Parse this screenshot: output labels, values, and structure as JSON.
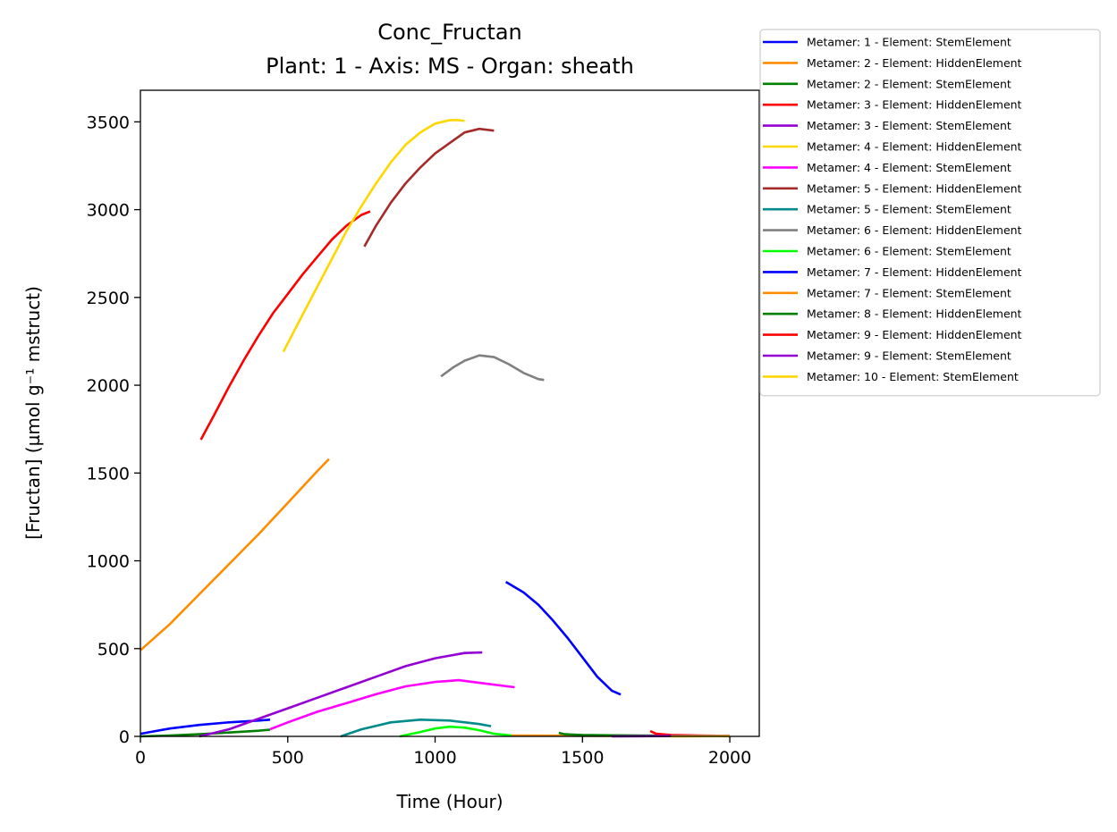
{
  "chart_data": {
    "type": "line",
    "title": "Conc_Fructan",
    "subtitle": "Plant: 1 - Axis: MS - Organ: sheath",
    "xlabel": "Time (Hour)",
    "ylabel": "[Fructan] (µmol g⁻¹ mstruct)",
    "xlim": [
      0,
      2100
    ],
    "ylim": [
      0,
      3680
    ],
    "xticks": [
      0,
      500,
      1000,
      1500,
      2000
    ],
    "yticks": [
      0,
      500,
      1000,
      1500,
      2000,
      2500,
      3000,
      3500
    ],
    "grid": false,
    "legend_position": "outside-top-right",
    "series": [
      {
        "name": "Metamer: 1 - Element: StemElement",
        "color": "#0000ff",
        "x": [
          0,
          50,
          100,
          200,
          300,
          400,
          440
        ],
        "y": [
          15,
          30,
          45,
          65,
          80,
          90,
          95
        ]
      },
      {
        "name": "Metamer: 2 - Element: HiddenElement",
        "color": "#ff8c00",
        "x": [
          0,
          100,
          200,
          300,
          400,
          500,
          600,
          640
        ],
        "y": [
          490,
          640,
          810,
          980,
          1150,
          1330,
          1510,
          1580
        ]
      },
      {
        "name": "Metamer: 2 - Element: StemElement",
        "color": "#008000",
        "x": [
          0,
          100,
          200,
          300,
          400,
          440
        ],
        "y": [
          0,
          5,
          12,
          22,
          32,
          38
        ]
      },
      {
        "name": "Metamer: 3 - Element: HiddenElement",
        "color": "#ff0000",
        "x": [
          205,
          250,
          300,
          350,
          400,
          450,
          500,
          550,
          600,
          650,
          700,
          750,
          780
        ],
        "y": [
          1690,
          1830,
          1990,
          2140,
          2280,
          2410,
          2520,
          2630,
          2730,
          2830,
          2910,
          2970,
          2990
        ]
      },
      {
        "name": "Metamer: 3 - Element: StemElement",
        "color": "#9400d3",
        "x": [
          200,
          300,
          400,
          500,
          600,
          700,
          800,
          900,
          1000,
          1100,
          1160
        ],
        "y": [
          0,
          40,
          100,
          160,
          220,
          280,
          340,
          400,
          445,
          475,
          478
        ]
      },
      {
        "name": "Metamer: 4 - Element: HiddenElement",
        "color": "#ffd700",
        "x": [
          485,
          550,
          600,
          650,
          700,
          750,
          800,
          850,
          900,
          950,
          1000,
          1050,
          1080,
          1100
        ],
        "y": [
          2190,
          2400,
          2560,
          2720,
          2880,
          3020,
          3150,
          3270,
          3370,
          3440,
          3490,
          3510,
          3510,
          3505
        ]
      },
      {
        "name": "Metamer: 4 - Element: StemElement",
        "color": "#ff00ff",
        "x": [
          440,
          500,
          600,
          700,
          800,
          900,
          1000,
          1080,
          1150,
          1270
        ],
        "y": [
          40,
          80,
          140,
          190,
          240,
          285,
          310,
          320,
          305,
          280
        ]
      },
      {
        "name": "Metamer: 5 - Element: HiddenElement",
        "color": "#a52a2a",
        "x": [
          760,
          800,
          850,
          900,
          950,
          1000,
          1050,
          1100,
          1150,
          1200
        ],
        "y": [
          2790,
          2910,
          3040,
          3150,
          3240,
          3320,
          3380,
          3440,
          3460,
          3450
        ]
      },
      {
        "name": "Metamer: 5 - Element: StemElement",
        "color": "#008b8b",
        "x": [
          680,
          750,
          850,
          950,
          1050,
          1150,
          1190
        ],
        "y": [
          0,
          40,
          80,
          95,
          90,
          70,
          58
        ]
      },
      {
        "name": "Metamer: 6 - Element: HiddenElement",
        "color": "#808080",
        "x": [
          1020,
          1060,
          1100,
          1150,
          1200,
          1250,
          1300,
          1350,
          1370
        ],
        "y": [
          2050,
          2100,
          2140,
          2170,
          2160,
          2120,
          2070,
          2035,
          2030
        ]
      },
      {
        "name": "Metamer: 6 - Element: StemElement",
        "color": "#00ff00",
        "x": [
          880,
          950,
          1000,
          1050,
          1100,
          1150,
          1200,
          1260
        ],
        "y": [
          0,
          25,
          45,
          55,
          50,
          35,
          15,
          5
        ]
      },
      {
        "name": "Metamer: 7 - Element: HiddenElement",
        "color": "#0000ff",
        "x": [
          1240,
          1300,
          1350,
          1400,
          1450,
          1500,
          1550,
          1600,
          1630
        ],
        "y": [
          880,
          820,
          750,
          660,
          560,
          450,
          340,
          260,
          238
        ]
      },
      {
        "name": "Metamer: 7 - Element: StemElement",
        "color": "#ff8c00",
        "x": [
          1260,
          1400,
          1600,
          1800,
          2000
        ],
        "y": [
          5,
          4,
          3,
          2,
          1
        ]
      },
      {
        "name": "Metamer: 8 - Element: HiddenElement",
        "color": "#008000",
        "x": [
          1420,
          1440,
          1500,
          1600,
          1700,
          1800,
          1900,
          2000
        ],
        "y": [
          20,
          12,
          8,
          6,
          5,
          4,
          3,
          2
        ]
      },
      {
        "name": "Metamer: 9 - Element: HiddenElement",
        "color": "#ff0000",
        "x": [
          1730,
          1750,
          1800,
          1900,
          2000
        ],
        "y": [
          30,
          15,
          8,
          5,
          3
        ]
      },
      {
        "name": "Metamer: 9 - Element: StemElement",
        "color": "#9400d3",
        "x": [
          1600,
          1700,
          1800,
          1900,
          2000
        ],
        "y": [
          0,
          1,
          2,
          3,
          4
        ]
      },
      {
        "name": "Metamer: 10 - Element: StemElement",
        "color": "#ffd700",
        "x": [
          1800,
          1900,
          2000
        ],
        "y": [
          0,
          1,
          2
        ]
      }
    ]
  }
}
